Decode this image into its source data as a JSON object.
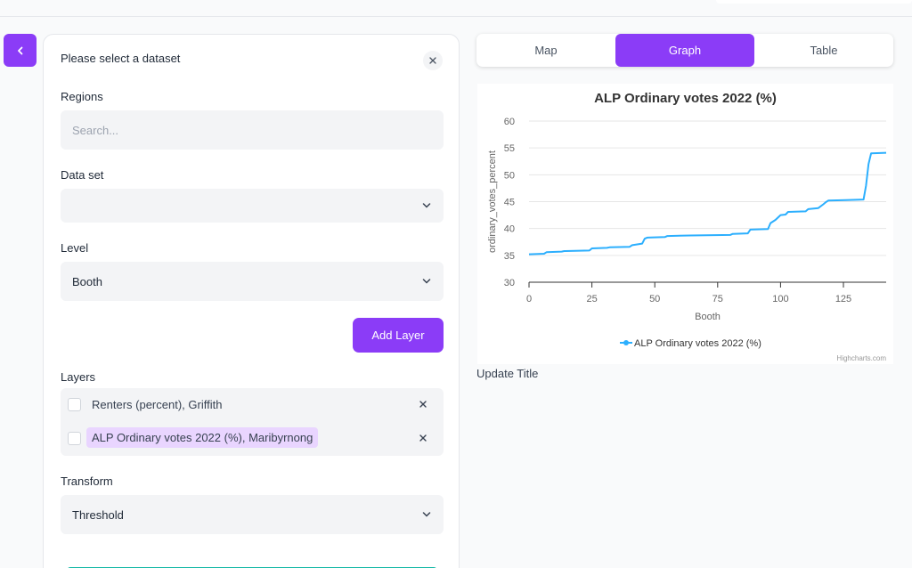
{
  "sidebar_panel": {
    "title": "Please select a dataset",
    "regions_label": "Regions",
    "search_placeholder": "Search...",
    "dataset_label": "Data set",
    "dataset_value": "",
    "level_label": "Level",
    "level_value": "Booth",
    "add_layer_label": "Add Layer",
    "layers_label": "Layers",
    "layers": [
      {
        "name": "Renters (percent), Griffith",
        "selected": false
      },
      {
        "name": "ALP Ordinary votes 2022 (%), Maribyrnong",
        "selected": true
      }
    ],
    "transform_label": "Transform",
    "transform_value": "Threshold"
  },
  "view_tabs": {
    "items": [
      "Map",
      "Graph",
      "Table"
    ],
    "active": "Graph"
  },
  "update_title_label": "Update Title",
  "colors": {
    "accent": "#8b3cf7",
    "series": "#2caffe"
  },
  "chart_data": {
    "type": "line",
    "title": "ALP Ordinary votes 2022 (%)",
    "xlabel": "Booth",
    "ylabel": "ordinary_votes_percent",
    "xlim": [
      0,
      142
    ],
    "ylim": [
      30,
      60
    ],
    "xticks": [
      0,
      25,
      50,
      75,
      100,
      125
    ],
    "yticks": [
      30,
      35,
      40,
      45,
      50,
      55,
      60
    ],
    "legend": "bottom-center",
    "credits": "Highcharts.com",
    "series": [
      {
        "name": "ALP Ordinary votes 2022 (%)",
        "points": [
          [
            0,
            35.2
          ],
          [
            6,
            35.3
          ],
          [
            7,
            35.6
          ],
          [
            13,
            35.7
          ],
          [
            14,
            35.8
          ],
          [
            24,
            35.9
          ],
          [
            25,
            36.3
          ],
          [
            31,
            36.4
          ],
          [
            32,
            36.5
          ],
          [
            40,
            36.6
          ],
          [
            41,
            36.9
          ],
          [
            45,
            37.2
          ],
          [
            46,
            38.1
          ],
          [
            47,
            38.3
          ],
          [
            54,
            38.4
          ],
          [
            55,
            38.6
          ],
          [
            64,
            38.7
          ],
          [
            80,
            38.8
          ],
          [
            81,
            39.0
          ],
          [
            87,
            39.1
          ],
          [
            88,
            39.8
          ],
          [
            95,
            39.9
          ],
          [
            96,
            41.0
          ],
          [
            98,
            41.6
          ],
          [
            100,
            42.5
          ],
          [
            102,
            42.6
          ],
          [
            103,
            43.1
          ],
          [
            110,
            43.2
          ],
          [
            111,
            43.6
          ],
          [
            115,
            43.8
          ],
          [
            117,
            44.5
          ],
          [
            118,
            44.9
          ],
          [
            119,
            45.2
          ],
          [
            126,
            45.3
          ],
          [
            133,
            45.4
          ],
          [
            134,
            48.0
          ],
          [
            135,
            52.0
          ],
          [
            136,
            54.0
          ],
          [
            142,
            54.1
          ]
        ]
      }
    ]
  }
}
